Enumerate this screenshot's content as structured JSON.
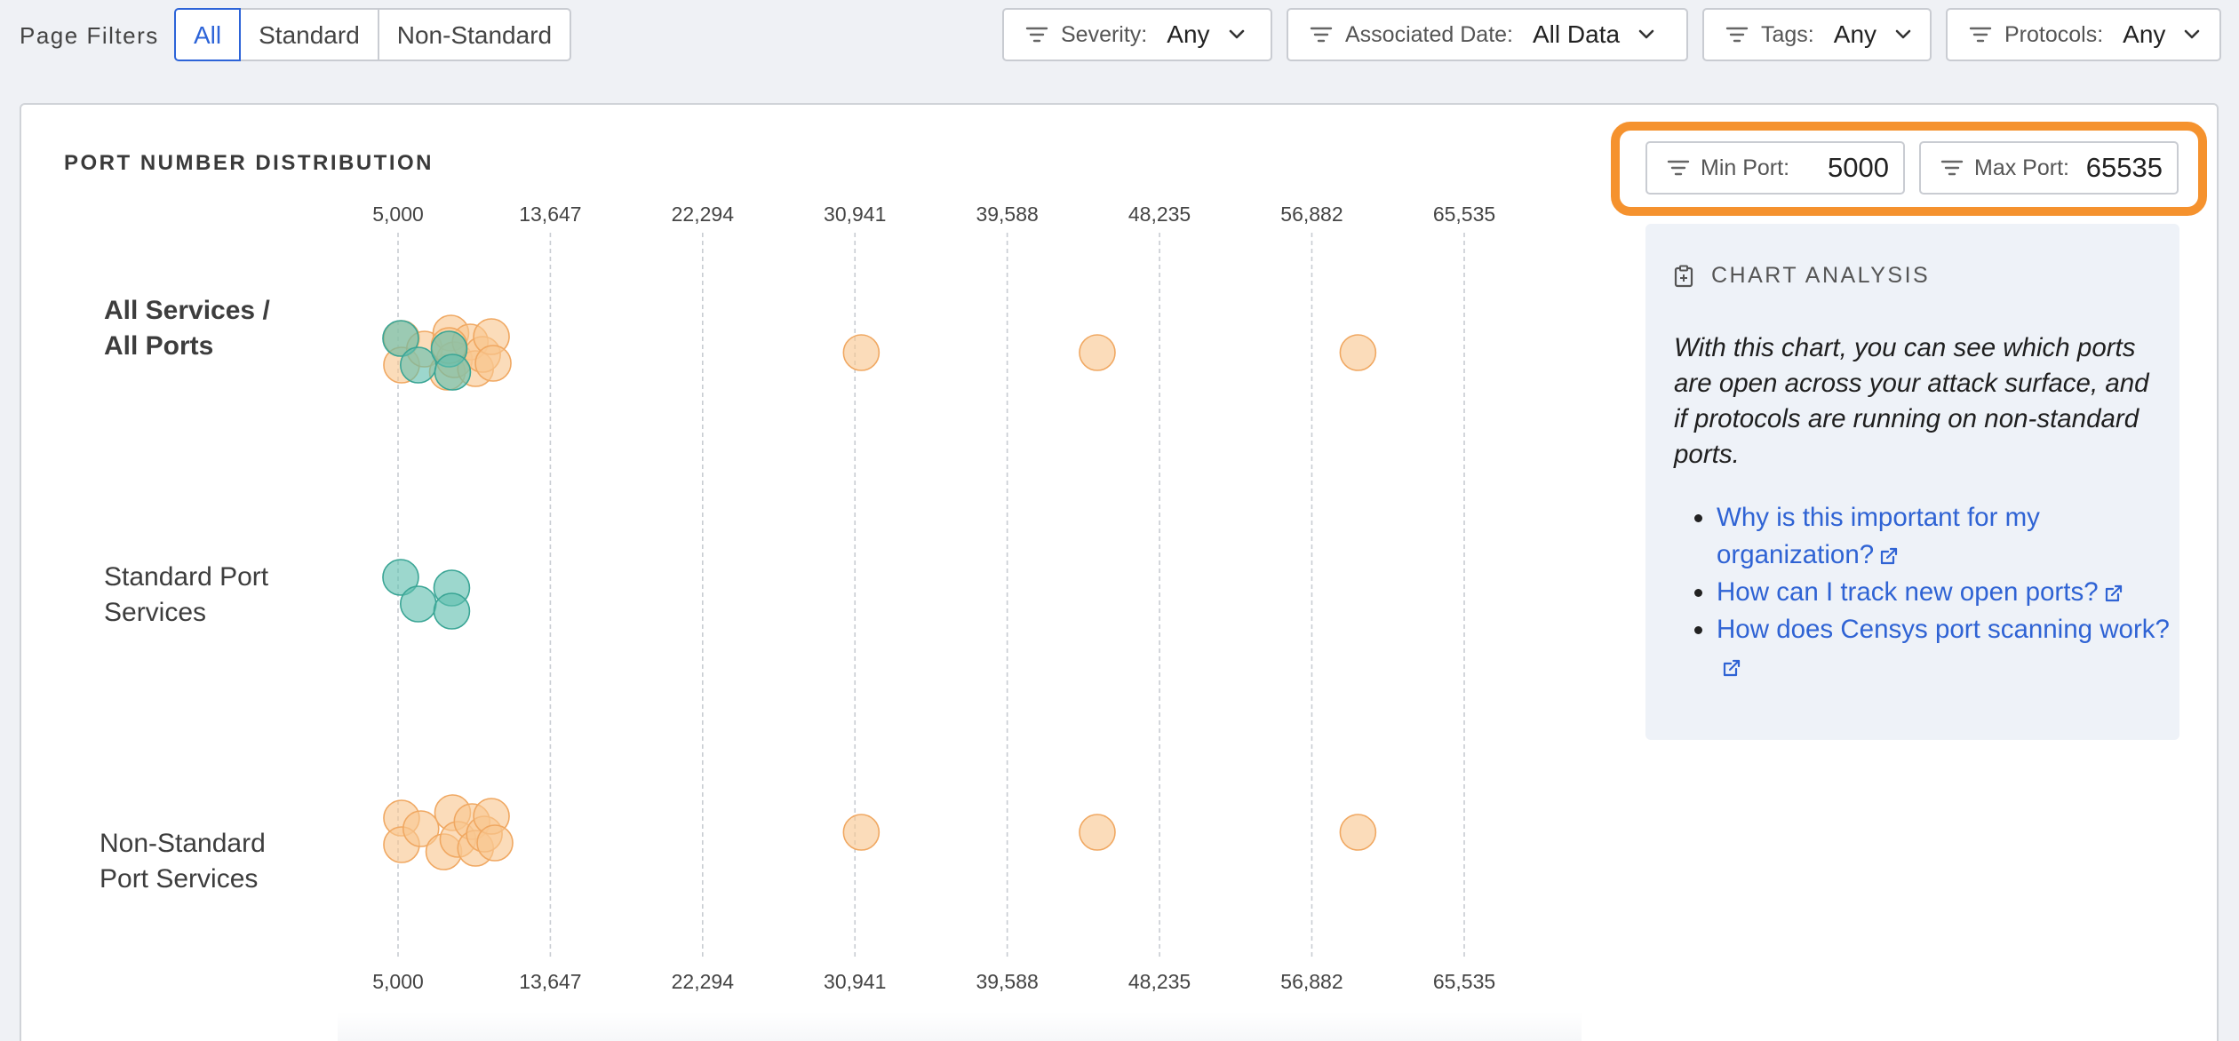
{
  "filters": {
    "page_filters_label": "Page Filters",
    "segments": [
      {
        "label": "All",
        "active": true
      },
      {
        "label": "Standard",
        "active": false
      },
      {
        "label": "Non-Standard",
        "active": false
      }
    ],
    "dropdowns": [
      {
        "label": "Severity:",
        "value": "Any"
      },
      {
        "label": "Associated Date:",
        "value": "All Data"
      },
      {
        "label": "Tags:",
        "value": "Any"
      },
      {
        "label": "Protocols:",
        "value": "Any"
      }
    ]
  },
  "chart_title": "PORT NUMBER DISTRIBUTION",
  "port_range": {
    "min_label": "Min Port:",
    "min_value": "5000",
    "max_label": "Max Port:",
    "max_value": "65535"
  },
  "analysis": {
    "title": "CHART ANALYSIS",
    "description": "With this chart, you can see which ports are open across your attack surface, and if protocols are running on non-standard ports.",
    "links": [
      "Why is this important for my organization?",
      "How can I track new open ports?",
      "How does Censys port scanning work?"
    ]
  },
  "colors": {
    "standard": "#5fbfae",
    "non_standard": "#f8c78f",
    "accent": "#2d64d8",
    "highlight": "#f5922e"
  },
  "chart_data": {
    "type": "scatter",
    "title": "PORT NUMBER DISTRIBUTION",
    "xlim": [
      5000,
      65535
    ],
    "x_ticks": [
      "5,000",
      "13,647",
      "22,294",
      "30,941",
      "39,588",
      "48,235",
      "56,882",
      "65,535"
    ],
    "categories": [
      "All Services / All Ports",
      "Standard Port Services",
      "Non-Standard Port Services"
    ],
    "series": [
      {
        "name": "Standard",
        "color": "#5fbfae",
        "points": [
          {
            "row": 0,
            "x": 5150
          },
          {
            "row": 0,
            "x": 6150
          },
          {
            "row": 0,
            "x": 7900
          },
          {
            "row": 0,
            "x": 8100
          },
          {
            "row": 1,
            "x": 5150
          },
          {
            "row": 1,
            "x": 6150
          },
          {
            "row": 1,
            "x": 8050
          },
          {
            "row": 1,
            "x": 8050
          }
        ]
      },
      {
        "name": "Non-Standard",
        "color": "#f8c78f",
        "points": [
          {
            "row": 0,
            "x": 5200
          },
          {
            "row": 0,
            "x": 5200
          },
          {
            "row": 0,
            "x": 6500
          },
          {
            "row": 0,
            "x": 7800
          },
          {
            "row": 0,
            "x": 8000
          },
          {
            "row": 0,
            "x": 8200
          },
          {
            "row": 0,
            "x": 9100
          },
          {
            "row": 0,
            "x": 9400
          },
          {
            "row": 0,
            "x": 9800
          },
          {
            "row": 0,
            "x": 10300
          },
          {
            "row": 0,
            "x": 10400
          },
          {
            "row": 0,
            "x": 7900
          },
          {
            "row": 0,
            "x": 31300
          },
          {
            "row": 0,
            "x": 44700
          },
          {
            "row": 0,
            "x": 59500
          },
          {
            "row": 2,
            "x": 5200
          },
          {
            "row": 2,
            "x": 5200
          },
          {
            "row": 2,
            "x": 6300
          },
          {
            "row": 2,
            "x": 7600
          },
          {
            "row": 2,
            "x": 8100
          },
          {
            "row": 2,
            "x": 8400
          },
          {
            "row": 2,
            "x": 9200
          },
          {
            "row": 2,
            "x": 9400
          },
          {
            "row": 2,
            "x": 9900
          },
          {
            "row": 2,
            "x": 10300
          },
          {
            "row": 2,
            "x": 10500
          },
          {
            "row": 2,
            "x": 31300
          },
          {
            "row": 2,
            "x": 44700
          },
          {
            "row": 2,
            "x": 59500
          }
        ]
      }
    ]
  }
}
